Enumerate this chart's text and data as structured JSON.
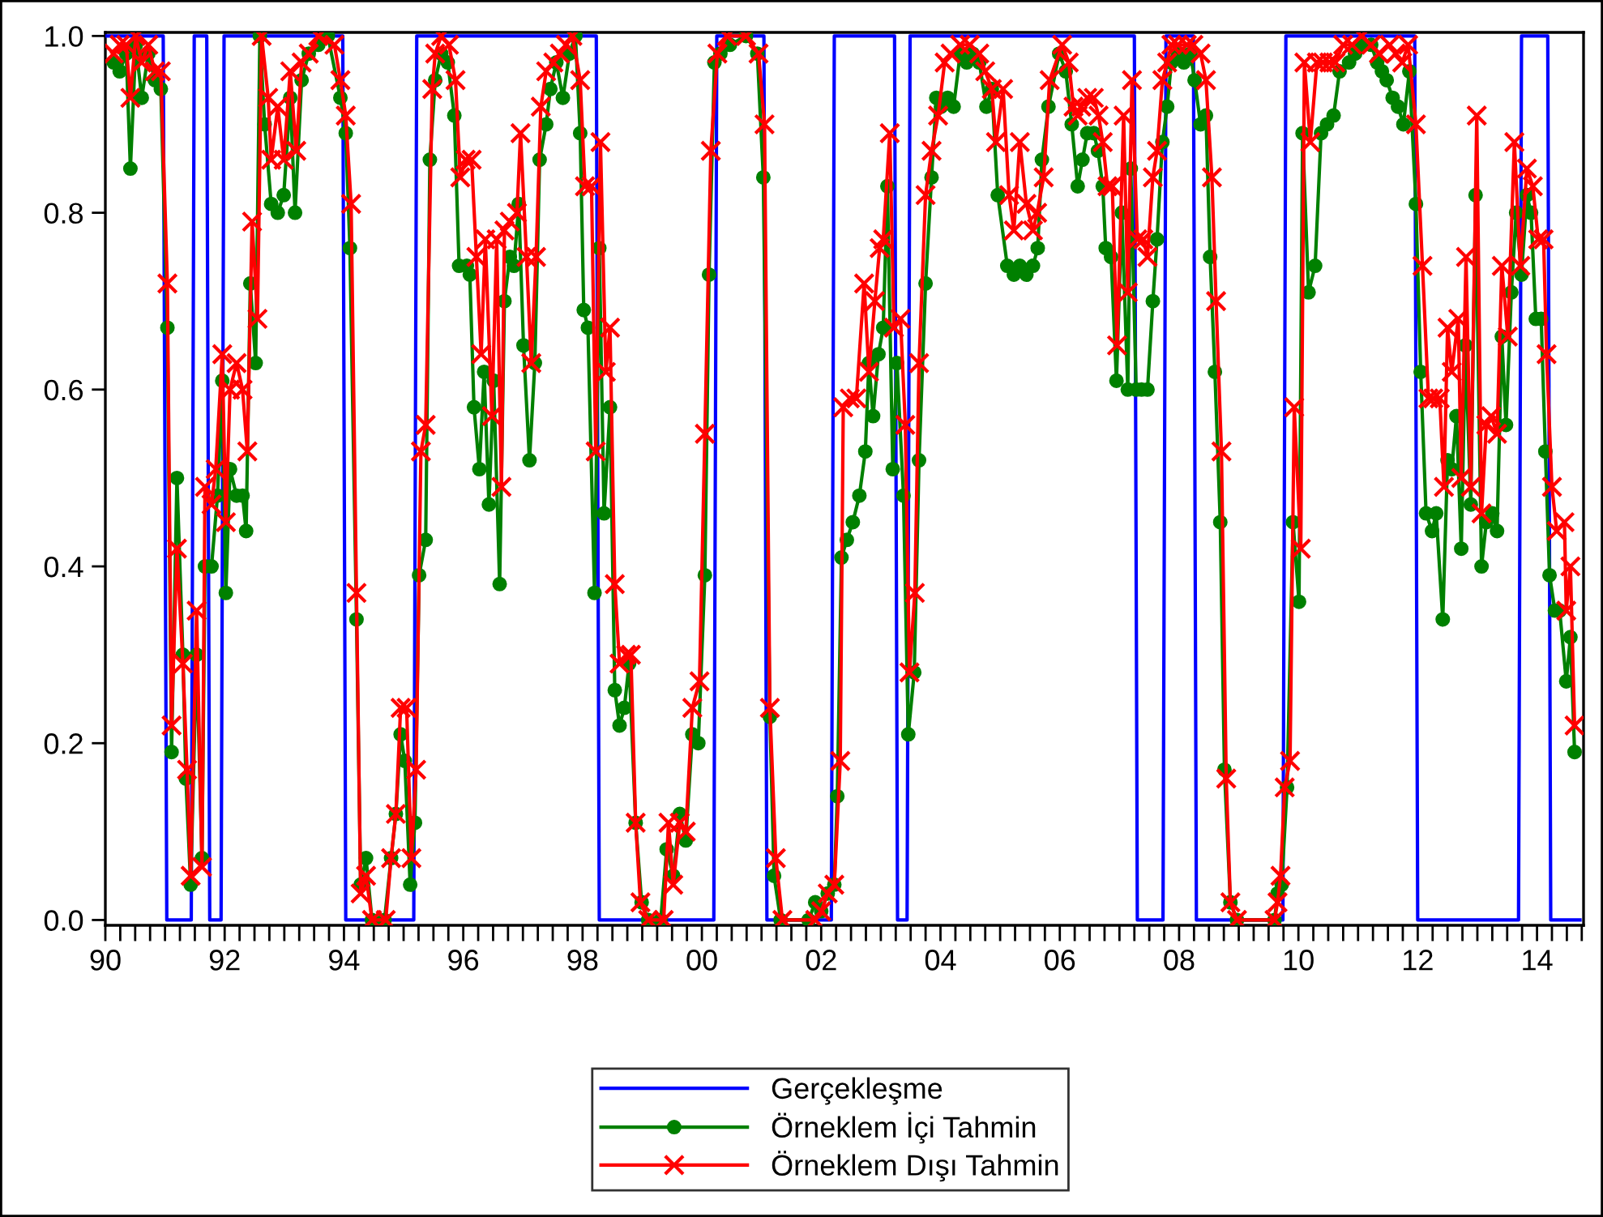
{
  "chart_data": {
    "type": "line",
    "xlim": [
      1990.0,
      2014.78
    ],
    "ylim": [
      -0.006,
      1.004
    ],
    "yticks": [
      {
        "value": 0,
        "label": "0.0"
      },
      {
        "value": 0.2,
        "label": "0.2"
      },
      {
        "value": 0.4,
        "label": "0.4"
      },
      {
        "value": 0.6,
        "label": "0.6"
      },
      {
        "value": 0.8,
        "label": "0.8"
      },
      {
        "value": 1.0,
        "label": "1.0"
      }
    ],
    "xticks": [
      {
        "value": 1990.0,
        "label": "90"
      },
      {
        "value": 1990.25,
        "label": null
      },
      {
        "value": 1990.5,
        "label": null
      },
      {
        "value": 1990.75,
        "label": null
      },
      {
        "value": 1991.0,
        "label": null
      },
      {
        "value": 1991.25,
        "label": null
      },
      {
        "value": 1991.5,
        "label": null
      },
      {
        "value": 1991.75,
        "label": null
      },
      {
        "value": 1992.0,
        "label": "92"
      },
      {
        "value": 1992.25,
        "label": null
      },
      {
        "value": 1992.5,
        "label": null
      },
      {
        "value": 1992.75,
        "label": null
      },
      {
        "value": 1993.0,
        "label": null
      },
      {
        "value": 1993.25,
        "label": null
      },
      {
        "value": 1993.5,
        "label": null
      },
      {
        "value": 1993.75,
        "label": null
      },
      {
        "value": 1994.0,
        "label": "94"
      },
      {
        "value": 1994.25,
        "label": null
      },
      {
        "value": 1994.5,
        "label": null
      },
      {
        "value": 1994.75,
        "label": null
      },
      {
        "value": 1995.0,
        "label": null
      },
      {
        "value": 1995.25,
        "label": null
      },
      {
        "value": 1995.5,
        "label": null
      },
      {
        "value": 1995.75,
        "label": null
      },
      {
        "value": 1996.0,
        "label": "96"
      },
      {
        "value": 1996.25,
        "label": null
      },
      {
        "value": 1996.5,
        "label": null
      },
      {
        "value": 1996.75,
        "label": null
      },
      {
        "value": 1997.0,
        "label": null
      },
      {
        "value": 1997.25,
        "label": null
      },
      {
        "value": 1997.5,
        "label": null
      },
      {
        "value": 1997.75,
        "label": null
      },
      {
        "value": 1998.0,
        "label": "98"
      },
      {
        "value": 1998.25,
        "label": null
      },
      {
        "value": 1998.5,
        "label": null
      },
      {
        "value": 1998.75,
        "label": null
      },
      {
        "value": 1999.0,
        "label": null
      },
      {
        "value": 1999.25,
        "label": null
      },
      {
        "value": 1999.5,
        "label": null
      },
      {
        "value": 1999.75,
        "label": null
      },
      {
        "value": 2000.0,
        "label": "00"
      },
      {
        "value": 2000.25,
        "label": null
      },
      {
        "value": 2000.5,
        "label": null
      },
      {
        "value": 2000.75,
        "label": null
      },
      {
        "value": 2001.0,
        "label": null
      },
      {
        "value": 2001.25,
        "label": null
      },
      {
        "value": 2001.5,
        "label": null
      },
      {
        "value": 2001.75,
        "label": null
      },
      {
        "value": 2002.0,
        "label": "02"
      },
      {
        "value": 2002.25,
        "label": null
      },
      {
        "value": 2002.5,
        "label": null
      },
      {
        "value": 2002.75,
        "label": null
      },
      {
        "value": 2003.0,
        "label": null
      },
      {
        "value": 2003.25,
        "label": null
      },
      {
        "value": 2003.5,
        "label": null
      },
      {
        "value": 2003.75,
        "label": null
      },
      {
        "value": 2004.0,
        "label": "04"
      },
      {
        "value": 2004.25,
        "label": null
      },
      {
        "value": 2004.5,
        "label": null
      },
      {
        "value": 2004.75,
        "label": null
      },
      {
        "value": 2005.0,
        "label": null
      },
      {
        "value": 2005.25,
        "label": null
      },
      {
        "value": 2005.5,
        "label": null
      },
      {
        "value": 2005.75,
        "label": null
      },
      {
        "value": 2006.0,
        "label": "06"
      },
      {
        "value": 2006.25,
        "label": null
      },
      {
        "value": 2006.5,
        "label": null
      },
      {
        "value": 2006.75,
        "label": null
      },
      {
        "value": 2007.0,
        "label": null
      },
      {
        "value": 2007.25,
        "label": null
      },
      {
        "value": 2007.5,
        "label": null
      },
      {
        "value": 2007.75,
        "label": null
      },
      {
        "value": 2008.0,
        "label": "08"
      },
      {
        "value": 2008.25,
        "label": null
      },
      {
        "value": 2008.5,
        "label": null
      },
      {
        "value": 2008.75,
        "label": null
      },
      {
        "value": 2009.0,
        "label": null
      },
      {
        "value": 2009.25,
        "label": null
      },
      {
        "value": 2009.5,
        "label": null
      },
      {
        "value": 2009.75,
        "label": null
      },
      {
        "value": 2010.0,
        "label": "10"
      },
      {
        "value": 2010.25,
        "label": null
      },
      {
        "value": 2010.5,
        "label": null
      },
      {
        "value": 2010.75,
        "label": null
      },
      {
        "value": 2011.0,
        "label": null
      },
      {
        "value": 2011.25,
        "label": null
      },
      {
        "value": 2011.5,
        "label": null
      },
      {
        "value": 2011.75,
        "label": null
      },
      {
        "value": 2012.0,
        "label": "12"
      },
      {
        "value": 2012.25,
        "label": null
      },
      {
        "value": 2012.5,
        "label": null
      },
      {
        "value": 2012.75,
        "label": null
      },
      {
        "value": 2013.0,
        "label": null
      },
      {
        "value": 2013.25,
        "label": null
      },
      {
        "value": 2013.5,
        "label": null
      },
      {
        "value": 2013.75,
        "label": null
      },
      {
        "value": 2014.0,
        "label": "14"
      },
      {
        "value": 2014.25,
        "label": null
      },
      {
        "value": 2014.5,
        "label": null
      },
      {
        "value": 2014.75,
        "label": null
      }
    ],
    "legend": "bottom",
    "series": [
      {
        "name": "Gerçekleşme",
        "color": "#0000ff",
        "marker": "none",
        "x": [
          1990.0,
          1990.97,
          1991.03,
          1991.44,
          1991.49,
          1991.7,
          1991.75,
          1991.94,
          1991.99,
          1993.98,
          1994.03,
          1995.17,
          1995.22,
          1998.23,
          1998.28,
          2000.2,
          2000.25,
          2001.04,
          2001.09,
          2002.17,
          2002.22,
          2003.23,
          2003.28,
          2003.44,
          2003.49,
          2007.25,
          2007.3,
          2007.73,
          2007.78,
          2008.24,
          2008.29,
          2009.74,
          2009.79,
          2011.95,
          2012.0,
          2013.69,
          2013.74,
          2014.18,
          2014.23,
          2014.72
        ],
        "values": [
          1,
          1,
          0,
          0,
          1,
          1,
          0,
          0,
          1,
          1,
          0,
          0,
          1,
          1,
          0,
          0,
          1,
          1,
          0,
          0,
          1,
          1,
          0,
          0,
          1,
          1,
          0,
          0,
          1,
          1,
          0,
          0,
          1,
          1,
          0,
          0,
          1,
          1,
          0,
          0
        ]
      },
      {
        "name": "Örneklem İçi Tahmin",
        "color": "#008000",
        "marker": "circle",
        "x": [
          1990.14,
          1990.24,
          1990.35,
          1990.42,
          1990.51,
          1990.61,
          1990.72,
          1990.83,
          1990.93,
          1991.04,
          1991.11,
          1991.2,
          1991.3,
          1991.35,
          1991.43,
          1991.53,
          1991.62,
          1991.67,
          1991.78,
          1991.88,
          1991.96,
          1992.02,
          1992.09,
          1992.2,
          1992.3,
          1992.36,
          1992.43,
          1992.52,
          1992.59,
          1992.67,
          1992.78,
          1992.89,
          1992.99,
          1993.1,
          1993.18,
          1993.29,
          1993.41,
          1993.57,
          1993.73,
          1993.94,
          1994.03,
          1994.1,
          1994.21,
          1994.28,
          1994.37,
          1994.47,
          1994.68,
          1994.79,
          1994.87,
          1994.95,
          1995.02,
          1995.11,
          1995.19,
          1995.26,
          1995.37,
          1995.44,
          1995.53,
          1995.63,
          1995.74,
          1995.85,
          1995.93,
          1996.06,
          1996.11,
          1996.18,
          1996.27,
          1996.35,
          1996.43,
          1996.51,
          1996.61,
          1996.69,
          1996.78,
          1996.85,
          1996.93,
          1997.01,
          1997.11,
          1997.2,
          1997.28,
          1997.39,
          1997.46,
          1997.56,
          1997.67,
          1997.78,
          1997.88,
          1997.96,
          1998.02,
          1998.09,
          1998.2,
          1998.28,
          1998.36,
          1998.46,
          1998.54,
          1998.62,
          1998.7,
          1998.78,
          1998.89,
          1998.99,
          1999.1,
          1999.31,
          1999.41,
          1999.52,
          1999.63,
          1999.73,
          1999.84,
          1999.94,
          2000.05,
          2000.12,
          2000.21,
          2000.31,
          2000.47,
          2000.74,
          2000.93,
          2001.03,
          2001.14,
          2001.21,
          2001.32,
          2001.79,
          2001.9,
          2002.0,
          2002.11,
          2002.22,
          2002.27,
          2002.34,
          2002.43,
          2002.53,
          2002.64,
          2002.74,
          2002.8,
          2002.87,
          2002.96,
          2003.04,
          2003.11,
          2003.2,
          2003.27,
          2003.38,
          2003.46,
          2003.56,
          2003.64,
          2003.75,
          2003.85,
          2003.93,
          2004.01,
          2004.12,
          2004.22,
          2004.33,
          2004.44,
          2004.54,
          2004.65,
          2004.77,
          2004.86,
          2004.96,
          2005.12,
          2005.23,
          2005.33,
          2005.44,
          2005.55,
          2005.63,
          2005.7,
          2005.81,
          2005.99,
          2006.1,
          2006.2,
          2006.3,
          2006.38,
          2006.46,
          2006.57,
          2006.64,
          2006.72,
          2006.77,
          2006.86,
          2006.95,
          2007.04,
          2007.14,
          2007.19,
          2007.28,
          2007.37,
          2007.47,
          2007.56,
          2007.63,
          2007.72,
          2007.8,
          2007.87,
          2007.98,
          2008.08,
          2008.19,
          2008.26,
          2008.36,
          2008.45,
          2008.52,
          2008.6,
          2008.69,
          2008.76,
          2008.86,
          2008.97,
          2009.6,
          2009.65,
          2009.72,
          2009.81,
          2009.91,
          2010.01,
          2010.07,
          2010.17,
          2010.28,
          2010.38,
          2010.48,
          2010.59,
          2010.69,
          2010.85,
          2010.95,
          2011.06,
          2011.22,
          2011.32,
          2011.4,
          2011.48,
          2011.58,
          2011.67,
          2011.76,
          2011.86,
          2011.97,
          2012.05,
          2012.14,
          2012.24,
          2012.31,
          2012.42,
          2012.5,
          2012.57,
          2012.65,
          2012.73,
          2012.8,
          2012.89,
          2012.97,
          2013.07,
          2013.15,
          2013.25,
          2013.33,
          2013.41,
          2013.48,
          2013.57,
          2013.65,
          2013.74,
          2013.83,
          2013.9,
          2013.98,
          2014.07,
          2014.14,
          2014.21,
          2014.3,
          2014.38,
          2014.49,
          2014.56,
          2014.63
        ],
        "values": [
          0.97,
          0.96,
          0.98,
          0.85,
          0.99,
          0.93,
          0.98,
          0.95,
          0.94,
          0.67,
          0.19,
          0.5,
          0.3,
          0.16,
          0.04,
          0.3,
          0.07,
          0.4,
          0.4,
          0.48,
          0.61,
          0.37,
          0.51,
          0.48,
          0.48,
          0.44,
          0.72,
          0.63,
          1.0,
          0.9,
          0.81,
          0.8,
          0.82,
          0.93,
          0.8,
          0.95,
          0.98,
          0.99,
          1.0,
          0.93,
          0.89,
          0.76,
          0.34,
          0.04,
          0.07,
          0,
          0,
          0.07,
          0.12,
          0.21,
          0.18,
          0.04,
          0.11,
          0.39,
          0.43,
          0.86,
          0.95,
          0.98,
          0.97,
          0.91,
          0.74,
          0.74,
          0.73,
          0.58,
          0.51,
          0.62,
          0.47,
          0.61,
          0.38,
          0.7,
          0.75,
          0.74,
          0.81,
          0.65,
          0.52,
          0.63,
          0.86,
          0.9,
          0.94,
          0.97,
          0.93,
          0.98,
          1.0,
          0.89,
          0.69,
          0.67,
          0.37,
          0.76,
          0.46,
          0.58,
          0.26,
          0.22,
          0.24,
          0.29,
          0.11,
          0.02,
          0,
          0,
          0.08,
          0.05,
          0.12,
          0.09,
          0.21,
          0.2,
          0.39,
          0.73,
          0.97,
          0.98,
          0.99,
          1.0,
          0.98,
          0.84,
          0.23,
          0.05,
          0,
          0,
          0.02,
          0.01,
          0.03,
          0.04,
          0.14,
          0.41,
          0.43,
          0.45,
          0.48,
          0.53,
          0.63,
          0.57,
          0.64,
          0.67,
          0.83,
          0.51,
          0.63,
          0.48,
          0.21,
          0.28,
          0.52,
          0.72,
          0.84,
          0.93,
          0.92,
          0.93,
          0.92,
          0.98,
          0.97,
          0.98,
          0.97,
          0.92,
          0.94,
          0.82,
          0.74,
          0.73,
          0.74,
          0.73,
          0.74,
          0.76,
          0.86,
          0.92,
          0.98,
          0.96,
          0.9,
          0.83,
          0.86,
          0.89,
          0.89,
          0.87,
          0.83,
          0.76,
          0.75,
          0.61,
          0.8,
          0.6,
          0.85,
          0.6,
          0.6,
          0.6,
          0.7,
          0.77,
          0.88,
          0.92,
          0.97,
          0.98,
          0.97,
          0.98,
          0.95,
          0.9,
          0.91,
          0.75,
          0.62,
          0.45,
          0.17,
          0.02,
          0,
          0,
          0.03,
          0.04,
          0.15,
          0.45,
          0.36,
          0.89,
          0.71,
          0.74,
          0.89,
          0.9,
          0.91,
          0.96,
          0.97,
          0.98,
          0.99,
          0.99,
          0.97,
          0.96,
          0.95,
          0.93,
          0.92,
          0.9,
          0.96,
          0.81,
          0.62,
          0.46,
          0.44,
          0.46,
          0.34,
          0.52,
          0.51,
          0.57,
          0.42,
          0.65,
          0.47,
          0.82,
          0.4,
          0.45,
          0.46,
          0.44,
          0.66,
          0.56,
          0.71,
          0.8,
          0.73,
          0.82,
          0.8,
          0.68,
          0.68,
          0.53,
          0.39,
          0.35,
          0.35,
          0.27,
          0.32,
          0.19
        ]
      },
      {
        "name": "Örneklem Dışı Tahmin",
        "color": "#ff0000",
        "marker": "cross",
        "x": [
          1990.14,
          1990.24,
          1990.35,
          1990.42,
          1990.51,
          1990.61,
          1990.72,
          1990.83,
          1990.93,
          1991.04,
          1991.11,
          1991.2,
          1991.3,
          1991.37,
          1991.43,
          1991.53,
          1991.62,
          1991.67,
          1991.78,
          1991.85,
          1991.96,
          1992.02,
          1992.09,
          1992.2,
          1992.3,
          1992.38,
          1992.46,
          1992.55,
          1992.62,
          1992.73,
          1992.78,
          1992.89,
          1992.99,
          1993.1,
          1993.2,
          1993.29,
          1993.41,
          1993.57,
          1993.84,
          1993.94,
          1994.03,
          1994.12,
          1994.21,
          1994.28,
          1994.37,
          1994.47,
          1994.7,
          1994.79,
          1994.87,
          1994.95,
          1995.05,
          1995.13,
          1995.21,
          1995.29,
          1995.37,
          1995.48,
          1995.53,
          1995.63,
          1995.76,
          1995.87,
          1995.95,
          1996.04,
          1996.14,
          1996.22,
          1996.3,
          1996.37,
          1996.48,
          1996.56,
          1996.64,
          1996.69,
          1996.78,
          1996.9,
          1996.96,
          1997.06,
          1997.14,
          1997.22,
          1997.3,
          1997.39,
          1997.51,
          1997.62,
          1997.72,
          1997.83,
          1997.96,
          1998.04,
          1998.15,
          1998.22,
          1998.3,
          1998.39,
          1998.46,
          1998.54,
          1998.62,
          1998.73,
          1998.81,
          1998.89,
          1998.97,
          1999.1,
          1999.36,
          1999.44,
          1999.52,
          1999.63,
          1999.73,
          1999.84,
          1999.96,
          2000.05,
          2000.15,
          2000.26,
          2000.42,
          2000.74,
          2000.95,
          2001.05,
          2001.14,
          2001.24,
          2001.35,
          2001.9,
          2002.0,
          2002.11,
          2002.22,
          2002.32,
          2002.37,
          2002.48,
          2002.59,
          2002.72,
          2002.8,
          2002.9,
          2002.98,
          2003.04,
          2003.15,
          2003.22,
          2003.33,
          2003.41,
          2003.48,
          2003.57,
          2003.64,
          2003.75,
          2003.85,
          2003.96,
          2004.07,
          2004.17,
          2004.33,
          2004.49,
          2004.65,
          2004.75,
          2004.86,
          2004.93,
          2005.05,
          2005.15,
          2005.23,
          2005.33,
          2005.44,
          2005.55,
          2005.62,
          2005.73,
          2005.83,
          2006.04,
          2006.15,
          2006.23,
          2006.3,
          2006.36,
          2006.46,
          2006.57,
          2006.65,
          2006.72,
          2006.8,
          2006.88,
          2006.96,
          2007.07,
          2007.14,
          2007.21,
          2007.3,
          2007.4,
          2007.47,
          2007.56,
          2007.63,
          2007.72,
          2007.8,
          2007.87,
          2007.98,
          2008.13,
          2008.24,
          2008.36,
          2008.45,
          2008.55,
          2008.62,
          2008.71,
          2008.79,
          2008.86,
          2008.97,
          2009.6,
          2009.65,
          2009.7,
          2009.77,
          2009.86,
          2009.93,
          2010.04,
          2010.1,
          2010.2,
          2010.31,
          2010.41,
          2010.52,
          2010.62,
          2010.75,
          2010.9,
          2011.06,
          2011.22,
          2011.35,
          2011.53,
          2011.63,
          2011.74,
          2011.84,
          2011.97,
          2012.08,
          2012.18,
          2012.26,
          2012.37,
          2012.44,
          2012.5,
          2012.57,
          2012.68,
          2012.73,
          2012.81,
          2012.89,
          2012.99,
          2013.07,
          2013.15,
          2013.23,
          2013.33,
          2013.41,
          2013.51,
          2013.62,
          2013.72,
          2013.83,
          2013.93,
          2014.02,
          2014.11,
          2014.16,
          2014.25,
          2014.33,
          2014.46,
          2014.49,
          2014.56,
          2014.63
        ],
        "values": [
          0.98,
          0.99,
          0.99,
          0.93,
          1.0,
          0.97,
          0.99,
          0.96,
          0.96,
          0.72,
          0.22,
          0.42,
          0.29,
          0.17,
          0.05,
          0.35,
          0.06,
          0.49,
          0.47,
          0.51,
          0.64,
          0.45,
          0.6,
          0.63,
          0.6,
          0.53,
          0.79,
          0.68,
          1.0,
          0.93,
          0.86,
          0.92,
          0.86,
          0.96,
          0.87,
          0.97,
          0.98,
          1.0,
          0.99,
          0.95,
          0.91,
          0.81,
          0.37,
          0.03,
          0.05,
          0,
          0,
          0.07,
          0.12,
          0.24,
          0.24,
          0.07,
          0.17,
          0.53,
          0.56,
          0.94,
          0.98,
          1.0,
          0.99,
          0.95,
          0.84,
          0.86,
          0.86,
          0.75,
          0.64,
          0.77,
          0.57,
          0.77,
          0.49,
          0.78,
          0.79,
          0.8,
          0.89,
          0.75,
          0.63,
          0.75,
          0.92,
          0.96,
          0.97,
          0.98,
          0.99,
          1.0,
          0.95,
          0.83,
          0.83,
          0.53,
          0.88,
          0.62,
          0.67,
          0.38,
          0.29,
          0.3,
          0.3,
          0.11,
          0.02,
          0,
          0,
          0.11,
          0.04,
          0.11,
          0.1,
          0.24,
          0.27,
          0.55,
          0.87,
          0.98,
          1.0,
          1.0,
          0.98,
          0.9,
          0.24,
          0.07,
          0,
          0,
          0.01,
          0.03,
          0.04,
          0.18,
          0.58,
          0.59,
          0.59,
          0.72,
          0.62,
          0.7,
          0.76,
          0.77,
          0.89,
          0.67,
          0.68,
          0.56,
          0.28,
          0.37,
          0.63,
          0.82,
          0.87,
          0.91,
          0.97,
          0.98,
          0.99,
          0.99,
          0.98,
          0.96,
          0.94,
          0.88,
          0.94,
          0.82,
          0.78,
          0.88,
          0.81,
          0.78,
          0.8,
          0.84,
          0.95,
          0.99,
          0.97,
          0.92,
          0.91,
          0.92,
          0.93,
          0.93,
          0.91,
          0.88,
          0.83,
          0.83,
          0.65,
          0.91,
          0.71,
          0.95,
          0.77,
          0.77,
          0.75,
          0.84,
          0.87,
          0.95,
          0.97,
          0.99,
          0.99,
          0.99,
          0.99,
          0.98,
          0.95,
          0.84,
          0.7,
          0.53,
          0.16,
          0.02,
          0,
          0,
          0.02,
          0.05,
          0.15,
          0.18,
          0.58,
          0.42,
          0.97,
          0.88,
          0.97,
          0.97,
          0.97,
          0.97,
          0.99,
          0.99,
          1.0,
          0.99,
          0.98,
          0.99,
          0.98,
          0.97,
          0.99,
          0.9,
          0.74,
          0.59,
          0.59,
          0.59,
          0.49,
          0.67,
          0.62,
          0.68,
          0.5,
          0.75,
          0.49,
          0.91,
          0.46,
          0.56,
          0.57,
          0.55,
          0.74,
          0.66,
          0.88,
          0.74,
          0.85,
          0.83,
          0.77,
          0.77,
          0.64,
          0.49,
          0.44,
          0.45,
          0.35,
          0.4,
          0.22
        ]
      }
    ]
  }
}
